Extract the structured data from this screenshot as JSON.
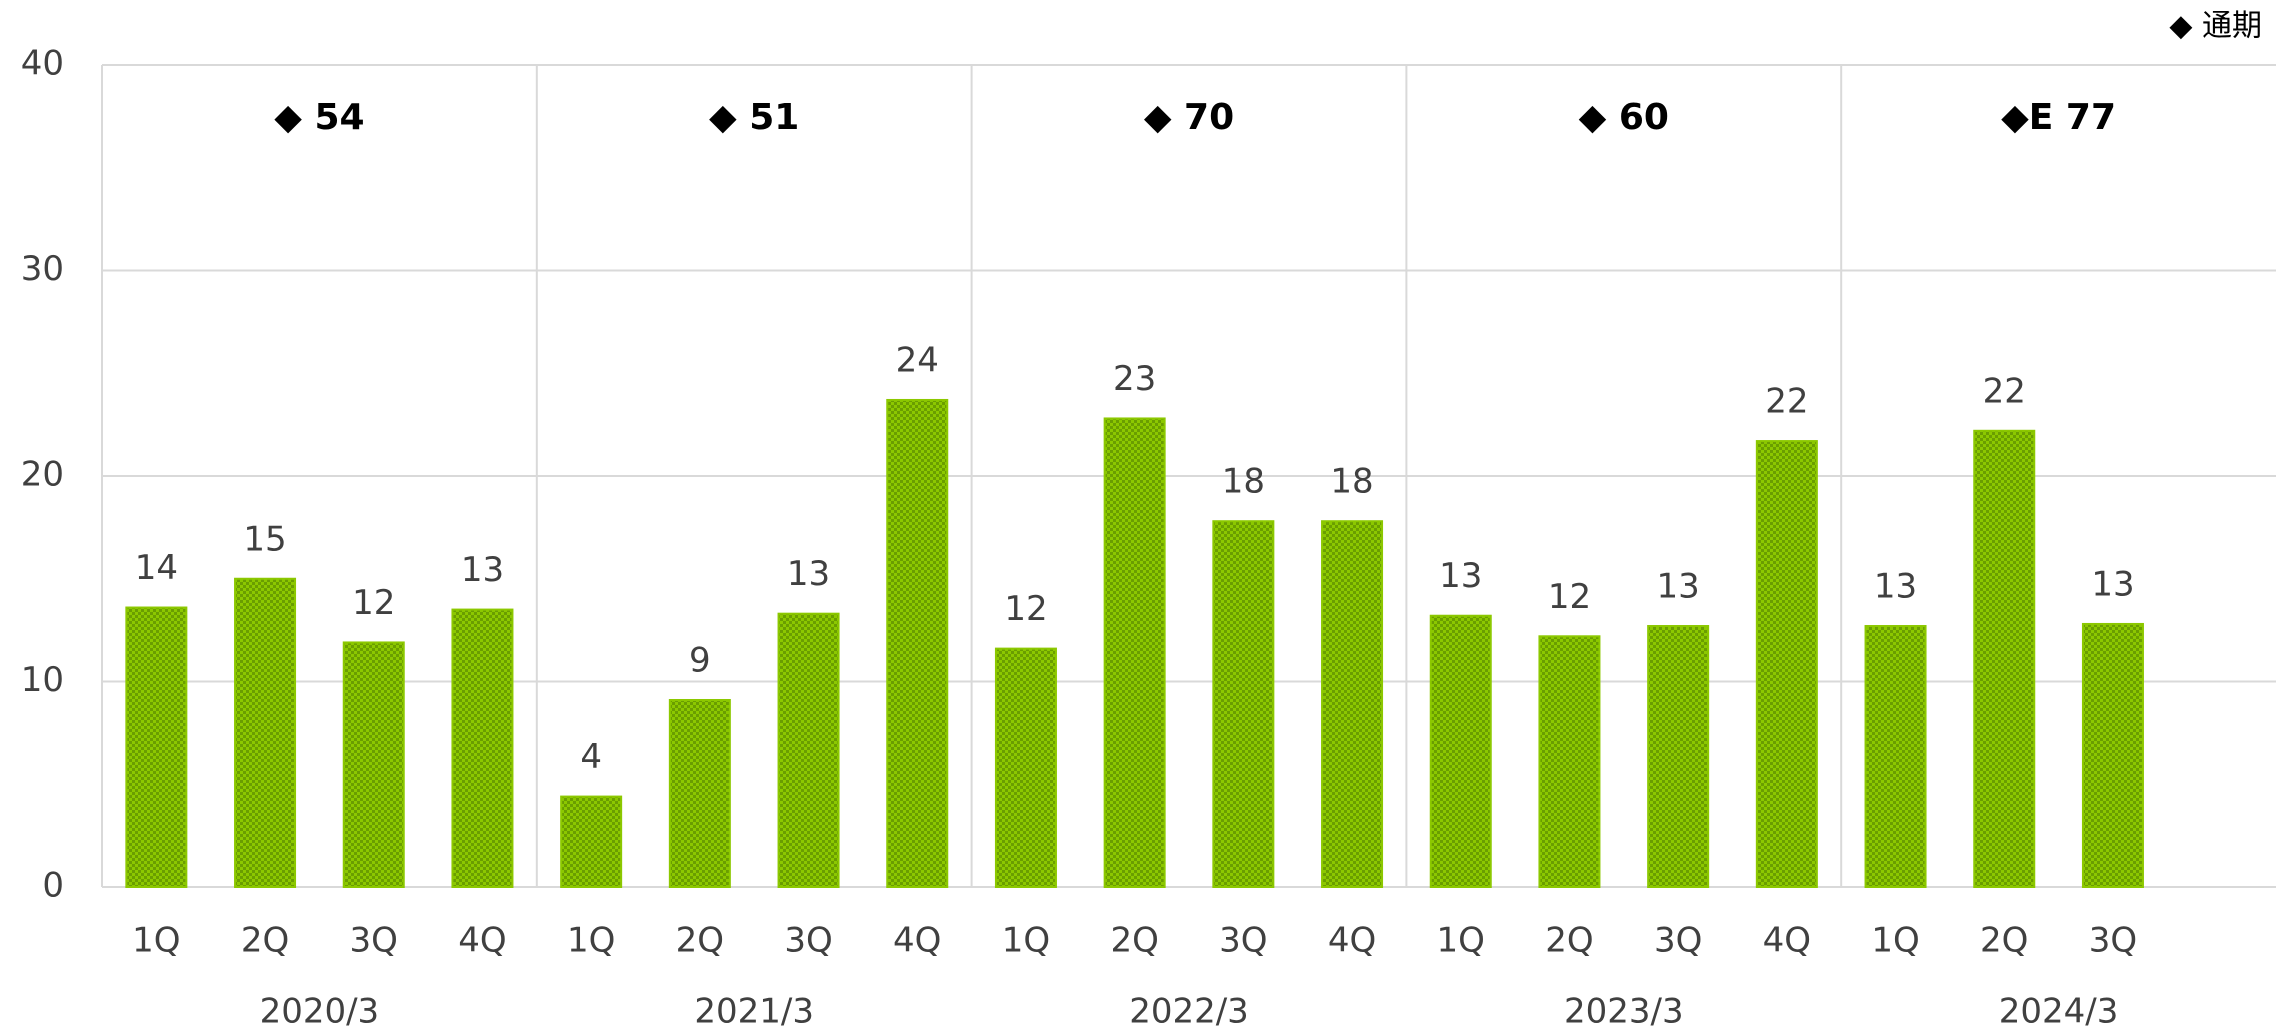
{
  "chart_data": {
    "type": "bar",
    "legend": "◆ 通期",
    "color": "#8cc800",
    "ylim": [
      0,
      40
    ],
    "yticks": [
      0,
      10,
      20,
      30,
      40
    ],
    "grid": true,
    "slots_per_group": 4,
    "groups": [
      {
        "name": "2020/3",
        "annual": "◆ 54",
        "quarters": [
          "1Q",
          "2Q",
          "3Q",
          "4Q"
        ],
        "values": [
          13.6,
          15.0,
          11.9,
          13.5
        ],
        "value_labels": [
          "14",
          "15",
          "12",
          "13"
        ]
      },
      {
        "name": "2021/3",
        "annual": "◆ 51",
        "quarters": [
          "1Q",
          "2Q",
          "3Q",
          "4Q"
        ],
        "values": [
          4.4,
          9.1,
          13.3,
          23.7
        ],
        "value_labels": [
          "4",
          "9",
          "13",
          "24"
        ]
      },
      {
        "name": "2022/3",
        "annual": "◆ 70",
        "quarters": [
          "1Q",
          "2Q",
          "3Q",
          "4Q"
        ],
        "values": [
          11.6,
          22.8,
          17.8,
          17.8
        ],
        "value_labels": [
          "12",
          "23",
          "18",
          "18"
        ]
      },
      {
        "name": "2023/3",
        "annual": "◆ 60",
        "quarters": [
          "1Q",
          "2Q",
          "3Q",
          "4Q"
        ],
        "values": [
          13.2,
          12.2,
          12.7,
          21.7
        ],
        "value_labels": [
          "13",
          "12",
          "13",
          "22"
        ]
      },
      {
        "name": "2024/3",
        "annual": "◆E 77",
        "quarters": [
          "1Q",
          "2Q",
          "3Q"
        ],
        "values": [
          12.7,
          22.2,
          12.8
        ],
        "value_labels": [
          "13",
          "22",
          "13"
        ]
      }
    ]
  }
}
